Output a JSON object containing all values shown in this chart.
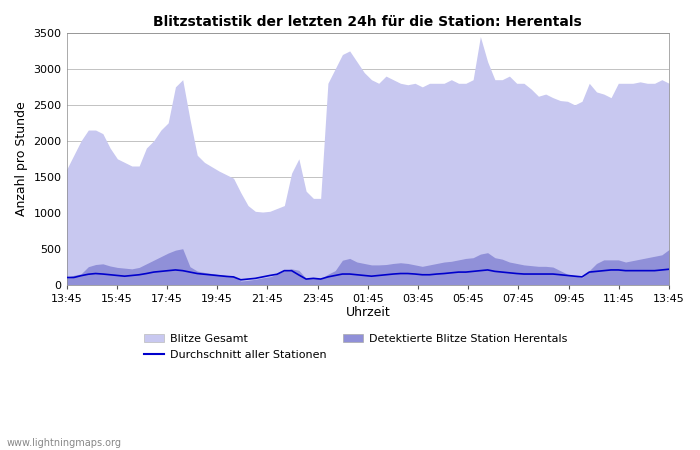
{
  "title": "Blitzstatistik der letzten 24h für die Station: Herentals",
  "xlabel": "Uhrzeit",
  "ylabel": "Anzahl pro Stunde",
  "ylim": [
    0,
    3500
  ],
  "yticks": [
    0,
    500,
    1000,
    1500,
    2000,
    2500,
    3000,
    3500
  ],
  "x_labels": [
    "13:45",
    "15:45",
    "17:45",
    "19:45",
    "21:45",
    "23:45",
    "01:45",
    "03:45",
    "05:45",
    "07:45",
    "09:45",
    "11:45",
    "13:45"
  ],
  "color_gesamt": "#c8c8f0",
  "color_detektiert": "#9090d8",
  "color_avg": "#0000cc",
  "background_color": "#ffffff",
  "watermark": "www.lightningmaps.org",
  "blitze_gesamt": [
    1600,
    1800,
    2000,
    2150,
    2150,
    2100,
    1900,
    1750,
    1700,
    1650,
    1650,
    1900,
    2000,
    2150,
    2250,
    2750,
    2850,
    2300,
    1800,
    1700,
    1640,
    1580,
    1530,
    1480,
    1280,
    1100,
    1020,
    1010,
    1020,
    1060,
    1100,
    1550,
    1750,
    1300,
    1200,
    1200,
    2800,
    3000,
    3200,
    3250,
    3100,
    2950,
    2850,
    2800,
    2900,
    2850,
    2800,
    2780,
    2800,
    2750,
    2800,
    2800,
    2800,
    2850,
    2800,
    2800,
    2850,
    3450,
    3100,
    2850,
    2850,
    2900,
    2800,
    2800,
    2720,
    2620,
    2650,
    2600,
    2560,
    2550,
    2500,
    2550,
    2800,
    2680,
    2650,
    2600,
    2800,
    2800,
    2800,
    2820,
    2800,
    2800,
    2850,
    2800
  ],
  "detektierte_blitze": [
    100,
    130,
    150,
    250,
    280,
    290,
    260,
    240,
    230,
    220,
    240,
    290,
    340,
    390,
    440,
    480,
    500,
    250,
    190,
    170,
    155,
    140,
    130,
    120,
    50,
    60,
    75,
    95,
    110,
    145,
    195,
    220,
    200,
    85,
    95,
    80,
    145,
    195,
    340,
    365,
    315,
    295,
    275,
    275,
    280,
    295,
    305,
    295,
    275,
    255,
    275,
    295,
    315,
    325,
    345,
    365,
    375,
    425,
    445,
    375,
    355,
    315,
    295,
    275,
    265,
    255,
    255,
    245,
    195,
    145,
    125,
    95,
    195,
    295,
    345,
    345,
    345,
    315,
    335,
    355,
    375,
    395,
    415,
    490
  ],
  "avg_line": [
    100,
    100,
    125,
    145,
    155,
    148,
    138,
    128,
    118,
    128,
    138,
    155,
    175,
    185,
    195,
    205,
    195,
    175,
    155,
    145,
    135,
    125,
    115,
    108,
    68,
    78,
    88,
    108,
    128,
    145,
    195,
    195,
    135,
    78,
    88,
    78,
    108,
    128,
    148,
    148,
    138,
    128,
    118,
    128,
    138,
    148,
    155,
    155,
    148,
    138,
    138,
    148,
    155,
    165,
    175,
    175,
    185,
    195,
    205,
    185,
    175,
    165,
    155,
    148,
    148,
    148,
    148,
    148,
    138,
    128,
    118,
    108,
    175,
    185,
    195,
    205,
    205,
    195,
    195,
    195,
    195,
    195,
    205,
    215
  ]
}
